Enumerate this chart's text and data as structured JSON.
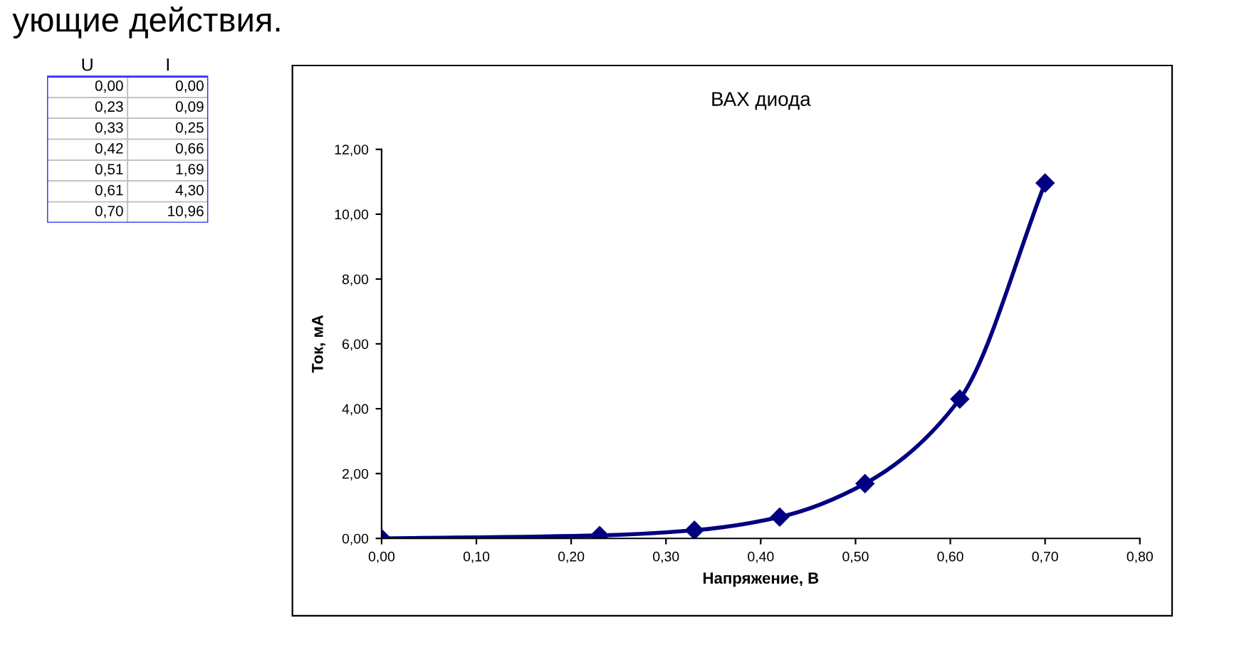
{
  "chart_data": {
    "type": "line",
    "title": "ВАХ диода",
    "xlabel": "Напряжение, В",
    "ylabel": "Ток, мА",
    "x": [
      0.0,
      0.23,
      0.33,
      0.42,
      0.51,
      0.61,
      0.7
    ],
    "series": [
      {
        "color": "#000080",
        "values": [
          0.0,
          0.09,
          0.25,
          0.66,
          1.69,
          4.3,
          10.96
        ]
      }
    ],
    "marker": "diamond",
    "line_style": "solid",
    "grid": false,
    "legend": false,
    "xlim": [
      0,
      0.8
    ],
    "xticks": [
      {
        "value": 0,
        "label": "0,00"
      },
      {
        "value": 0.1,
        "label": "0,10"
      },
      {
        "value": 0.2,
        "label": "0,20"
      },
      {
        "value": 0.3,
        "label": "0,30"
      },
      {
        "value": 0.4,
        "label": "0,40"
      },
      {
        "value": 0.5,
        "label": "0,50"
      },
      {
        "value": 0.6,
        "label": "0,60"
      },
      {
        "value": 0.7,
        "label": "0,70"
      },
      {
        "value": 0.8,
        "label": "0,80"
      }
    ],
    "ylim": [
      0,
      12
    ],
    "yticks": [
      {
        "value": 0,
        "label": "0,00"
      },
      {
        "value": 2,
        "label": "2,00"
      },
      {
        "value": 4,
        "label": "4,00"
      },
      {
        "value": 6,
        "label": "6,00"
      },
      {
        "value": 8,
        "label": "8,00"
      },
      {
        "value": 10,
        "label": "10,00"
      },
      {
        "value": 12,
        "label": "12,00"
      }
    ],
    "annotations": [
      "ующие действия.",
      "U",
      "I",
      "0,00",
      "0,00",
      "0,23",
      "0,09",
      "0,33",
      "0,25",
      "0,42",
      "0,66",
      "0,51",
      "1,69",
      "0,61",
      "4,30",
      "0,70",
      "10,96"
    ]
  }
}
